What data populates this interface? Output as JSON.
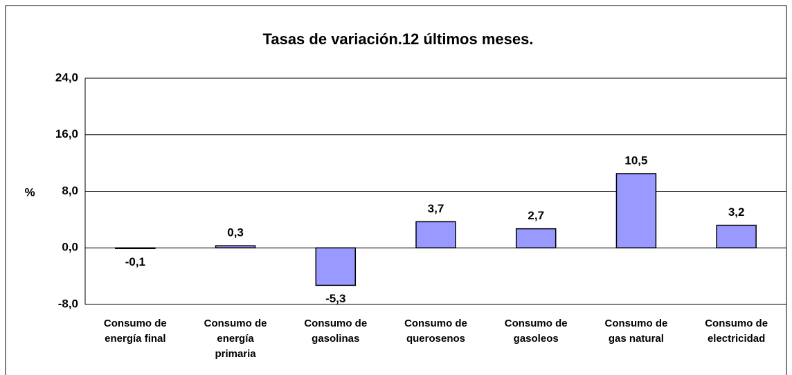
{
  "chart_data": {
    "type": "bar",
    "title": "Tasas de variación.12 últimos meses.",
    "y_label": "%",
    "categories": [
      "Consumo de\nenergía final",
      "Consumo de\nenergía\nprimaria",
      "Consumo de\ngasolinas",
      "Consumo de\nquerosenos",
      "Consumo de\ngasoleos",
      "Consumo de\ngas natural",
      "Consumo de\nelectricidad"
    ],
    "values": [
      -0.1,
      0.3,
      -5.3,
      3.7,
      2.7,
      10.5,
      3.2
    ],
    "value_labels": [
      "-0,1",
      "0,3",
      "-5,3",
      "3,7",
      "2,7",
      "10,5",
      "3,2"
    ],
    "color": "#9999ff",
    "ylim": [
      -8,
      24
    ],
    "yticks": [
      {
        "value": -8,
        "label": "-8,0"
      },
      {
        "value": 0,
        "label": "0,0"
      },
      {
        "value": 8,
        "label": "8,0"
      },
      {
        "value": 16,
        "label": "16,0"
      },
      {
        "value": 24,
        "label": "24,0"
      }
    ],
    "grid": true
  }
}
